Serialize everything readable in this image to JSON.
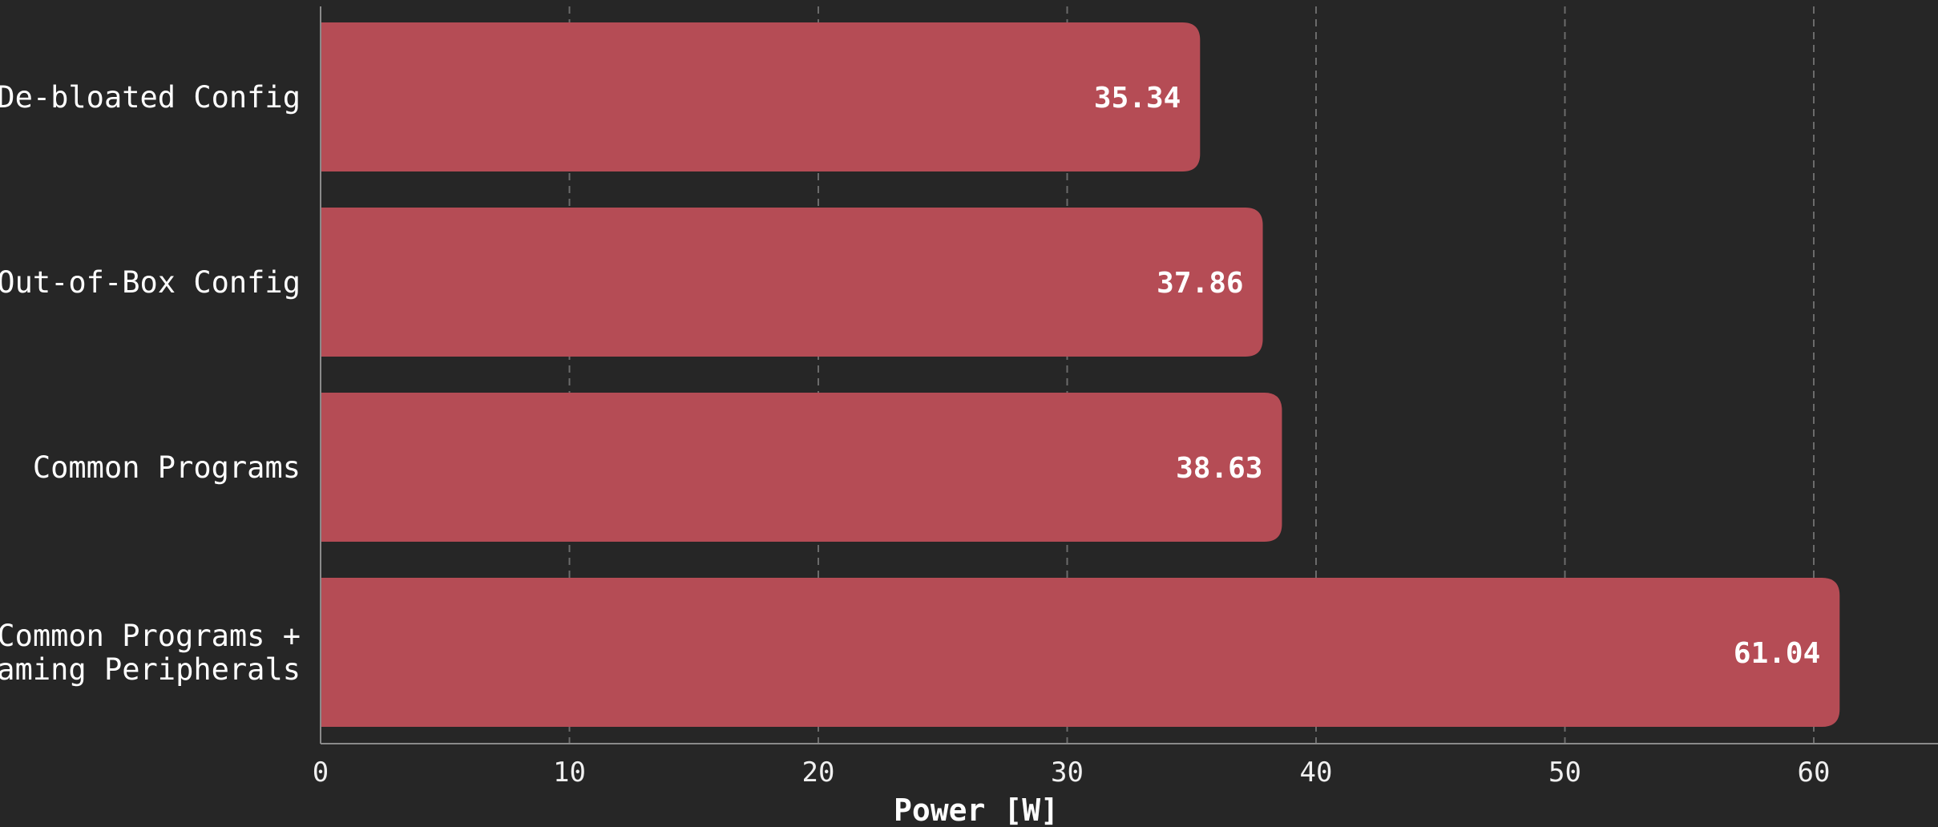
{
  "chart_data": {
    "type": "bar",
    "orientation": "horizontal",
    "categories": [
      "De-bloated Config",
      "Out-of-Box Config",
      "Common Programs",
      "Common Programs +\nGaming Peripherals"
    ],
    "values": [
      35.34,
      37.86,
      38.63,
      61.04
    ],
    "value_labels": [
      "35.34",
      "37.86",
      "38.63",
      "61.04"
    ],
    "title": "",
    "xlabel": "Power [W]",
    "ylabel": "",
    "xlim": [
      0,
      65
    ],
    "xticks": [
      0,
      10,
      20,
      30,
      40,
      50,
      60
    ],
    "grid": "x, dashed",
    "legend": "none",
    "colors": {
      "background": "#262626",
      "bar": "#b54c55",
      "grid": "#6b6b6b",
      "axis": "#8a8a8a",
      "text": "#ffffff"
    }
  }
}
